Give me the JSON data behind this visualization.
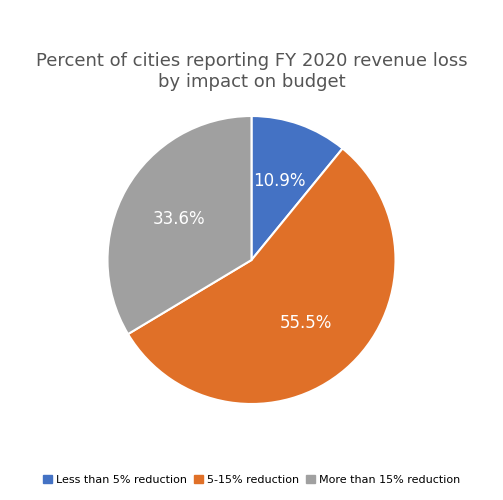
{
  "title": "Percent of cities reporting FY 2020 revenue loss\nby impact on budget",
  "slices": [
    10.9,
    55.5,
    33.6
  ],
  "labels": [
    "10.9%",
    "55.5%",
    "33.6%"
  ],
  "colors": [
    "#4472C4",
    "#E07028",
    "#A0A0A0"
  ],
  "legend_labels": [
    "Less than 5% reduction",
    "5-15% reduction",
    "More than 15% reduction"
  ],
  "startangle": 90,
  "title_fontsize": 13,
  "label_fontsize": 12,
  "background_color": "#ffffff"
}
